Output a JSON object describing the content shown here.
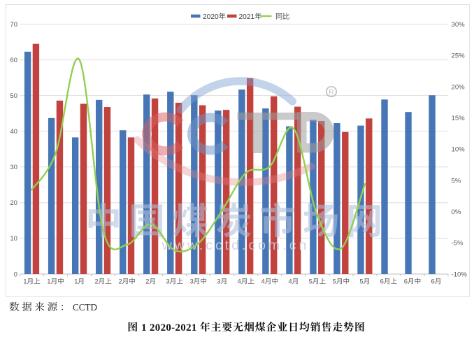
{
  "legend": {
    "items": [
      {
        "label": "2020年",
        "type": "bar",
        "color": "#4676B5"
      },
      {
        "label": "2021年",
        "type": "bar",
        "color": "#C2423E"
      },
      {
        "label": "同比",
        "type": "line",
        "color": "#92D050"
      }
    ]
  },
  "chart_data": {
    "type": "bar+line",
    "title": "",
    "categories": [
      "1月上",
      "1月中",
      "1月",
      "2月上",
      "2月中",
      "2月",
      "3月上",
      "3月中",
      "3月",
      "4月上",
      "4月中",
      "4月",
      "5月上",
      "5月中",
      "5月",
      "6月上",
      "6月中",
      "6月"
    ],
    "series": [
      {
        "name": "2020年",
        "type": "bar",
        "axis": "left",
        "color": "#4676B5",
        "values": [
          62.3,
          43.7,
          38.3,
          48.8,
          40.3,
          50.3,
          51.1,
          50.1,
          45.8,
          51.7,
          46.4,
          41.4,
          43.2,
          42.3,
          41.6,
          48.9,
          45.4,
          50.1
        ]
      },
      {
        "name": "2021年",
        "type": "bar",
        "axis": "left",
        "color": "#C2423E",
        "values": [
          64.5,
          48.6,
          47.7,
          46.8,
          38.3,
          49.2,
          48.0,
          47.3,
          46.0,
          54.9,
          49.8,
          46.9,
          42.9,
          39.8,
          43.6,
          null,
          null,
          null
        ]
      },
      {
        "name": "同比",
        "type": "line",
        "axis": "right",
        "color": "#92D050",
        "smooth": true,
        "values": [
          3.5,
          9.3,
          24.3,
          -3.0,
          -5.3,
          -2.0,
          -6.2,
          -5.1,
          0.2,
          6.2,
          7.2,
          13.3,
          -0.6,
          -5.9,
          4.4,
          null,
          null,
          null
        ]
      }
    ],
    "left_axis": {
      "min": 0,
      "max": 70,
      "step": 10,
      "ticks": [
        "0",
        "10",
        "20",
        "30",
        "40",
        "50",
        "60",
        "70"
      ]
    },
    "right_axis": {
      "min": -10,
      "max": 30,
      "step": 5,
      "ticks": [
        "-10%",
        "-5%",
        "0%",
        "5%",
        "10%",
        "15%",
        "20%",
        "25%",
        "30%"
      ]
    },
    "grid": true,
    "legend_position": "top"
  },
  "watermark": {
    "logo_text": "CCTD",
    "registered_mark": "R",
    "cn_text": "中国煤炭市场网",
    "url_text": "www.cctd.com.cn"
  },
  "footer": {
    "source_label": "数据来源：CCTD"
  },
  "caption": {
    "text": "图 1 2020-2021 年主要无烟煤企业日均销售走势图"
  },
  "theme": {
    "bar_2020": "#4676B5",
    "bar_2021": "#C2423E",
    "line_yoy": "#92D050",
    "gridline": "#D9D9D9",
    "axis_line": "#BFBFBF",
    "tick_text": "#595959",
    "legend_text": "#404040",
    "chart_border": "#E2E2E2",
    "watermark_blue": "#AFC0DC",
    "watermark_gray": "#9E9E9E",
    "watermark_pink": "#D95F5F"
  }
}
